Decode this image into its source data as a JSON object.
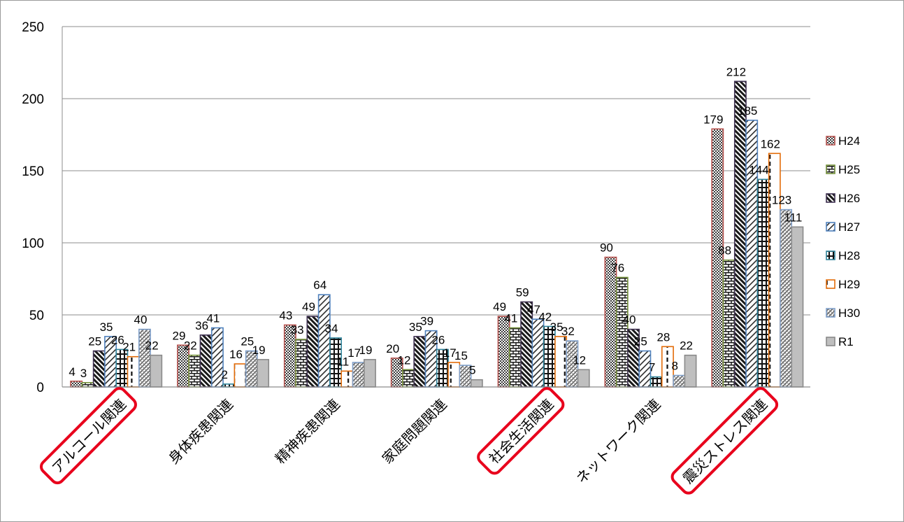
{
  "chart_data": {
    "type": "bar",
    "title": "",
    "xlabel": "",
    "ylabel": "",
    "ylim": [
      0,
      250
    ],
    "yticks": [
      0,
      50,
      100,
      150,
      200,
      250
    ],
    "grid": true,
    "legend_position": "right",
    "categories": [
      "アルコール関連",
      "身体疾患関連",
      "精神疾患関連",
      "家庭問題関連",
      "社会生活関連",
      "ネットワーク関連",
      "震災ストレス関連"
    ],
    "highlighted_categories": [
      "アルコール関連",
      "社会生活関連",
      "震災ストレス関連"
    ],
    "highlight_color": "#e8001c",
    "series": [
      {
        "name": "H24",
        "values": [
          4,
          29,
          43,
          20,
          49,
          90,
          179
        ],
        "pattern": "checker",
        "edge_color": "#b85450",
        "pattern_color": "#3a3a3a"
      },
      {
        "name": "H25",
        "values": [
          3,
          22,
          33,
          12,
          41,
          76,
          88
        ],
        "pattern": "brick",
        "edge_color": "#76923c",
        "pattern_color": "#1a1a1a"
      },
      {
        "name": "H26",
        "values": [
          25,
          36,
          49,
          35,
          59,
          40,
          212
        ],
        "pattern": "diag-dark",
        "edge_color": "#3f3151",
        "pattern_color": "#1a1a1a"
      },
      {
        "name": "H27",
        "values": [
          35,
          41,
          64,
          39,
          47,
          25,
          185
        ],
        "pattern": "diag-light",
        "edge_color": "#4f81bd",
        "pattern_color": "#2a2a2a"
      },
      {
        "name": "H28",
        "values": [
          26,
          2,
          34,
          26,
          42,
          7,
          144
        ],
        "pattern": "grid",
        "edge_color": "#31859c",
        "pattern_color": "#111111"
      },
      {
        "name": "H29",
        "values": [
          21,
          16,
          11,
          17,
          35,
          28,
          162
        ],
        "pattern": "dashed",
        "edge_color": "#e36c09",
        "pattern_color": "#111111"
      },
      {
        "name": "H30",
        "values": [
          40,
          25,
          17,
          15,
          32,
          8,
          123
        ],
        "pattern": "zigzag",
        "edge_color": "#7f9fc9",
        "pattern_color": "#555555"
      },
      {
        "name": "R1",
        "values": [
          22,
          19,
          19,
          5,
          12,
          22,
          111
        ],
        "pattern": "solid",
        "edge_color": "#8a8a8a",
        "pattern_color": "#bfbfbf"
      }
    ]
  }
}
